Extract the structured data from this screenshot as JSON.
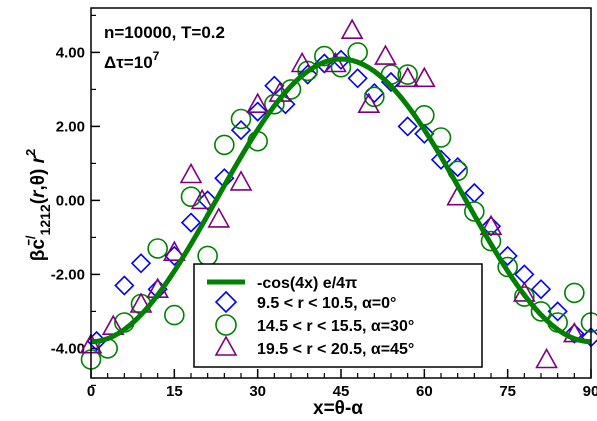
{
  "chart_data": {
    "type": "scatter",
    "xlabel": "x=θ-α",
    "ylabel": "βc̄/1212(r,θ) r²",
    "xlim": [
      0,
      90
    ],
    "ylim": [
      -4.8,
      5.2
    ],
    "x_ticks": [
      "0",
      "15",
      "30",
      "45",
      "60",
      "75",
      "90"
    ],
    "y_ticks": [
      "-4.00",
      "-2.00",
      "0.00",
      "2.00",
      "4.00"
    ],
    "grid": false,
    "legend_position": "bottom-center",
    "annotations": [
      "n=10000, T=0.2",
      "Δτ=10⁷"
    ],
    "colors": {
      "line": "#008000",
      "diamond": "#0000ff",
      "circle": "#008000",
      "triangle": "#7f007f"
    },
    "line": {
      "name": "-cos(4x) e/4π",
      "amplitude": 3.82,
      "samples": 91
    },
    "series": [
      {
        "name": "9.5 < r < 10.5, α=0°",
        "marker": "diamond",
        "x": [
          1,
          6,
          9,
          12,
          15,
          18,
          21,
          24,
          27,
          30,
          33,
          35,
          39,
          42,
          45,
          48,
          51,
          54,
          57,
          60,
          63,
          66,
          69,
          72,
          75,
          78,
          81,
          84,
          87,
          90
        ],
        "y": [
          -3.8,
          -2.3,
          -1.7,
          -2.4,
          -1.5,
          -0.6,
          0.0,
          0.6,
          1.9,
          2.4,
          3.1,
          2.6,
          3.4,
          3.7,
          3.8,
          3.3,
          2.9,
          3.2,
          2.0,
          1.8,
          1.1,
          0.9,
          0.2,
          -0.7,
          -1.5,
          -2.0,
          -2.4,
          -3.0,
          -3.6,
          -3.7
        ]
      },
      {
        "name": "14.5 < r < 15.5, α=30°",
        "marker": "circle",
        "x": [
          0,
          3,
          6,
          9,
          12,
          15,
          18,
          21,
          24,
          27,
          30,
          33,
          36,
          39,
          42,
          45,
          48,
          51,
          54,
          57,
          60,
          63,
          66,
          69,
          72,
          75,
          78,
          81,
          84,
          87,
          90
        ],
        "y": [
          -4.3,
          -4.0,
          -3.3,
          -2.8,
          -1.3,
          -3.1,
          0.1,
          -1.5,
          1.5,
          2.2,
          1.6,
          2.6,
          3.0,
          3.5,
          3.9,
          3.6,
          4.0,
          2.8,
          3.4,
          3.4,
          2.3,
          1.7,
          0.8,
          -0.3,
          -1.1,
          -1.8,
          -2.6,
          -3.0,
          -3.3,
          -2.5,
          -3.3
        ]
      },
      {
        "name": "19.5 < r < 20.5, α=45°",
        "marker": "triangle",
        "x": [
          0,
          4,
          9,
          12,
          15,
          18,
          20,
          23,
          27,
          30,
          34,
          38,
          44,
          47,
          50,
          53,
          57,
          60,
          66,
          72,
          78,
          82,
          87
        ],
        "y": [
          -3.9,
          -3.4,
          -2.8,
          -2.4,
          -1.4,
          0.7,
          0.0,
          -0.5,
          0.5,
          2.6,
          2.9,
          3.7,
          3.7,
          4.6,
          2.6,
          3.9,
          3.3,
          3.3,
          0.1,
          -0.7,
          -2.5,
          -4.3,
          -3.6
        ]
      }
    ]
  }
}
